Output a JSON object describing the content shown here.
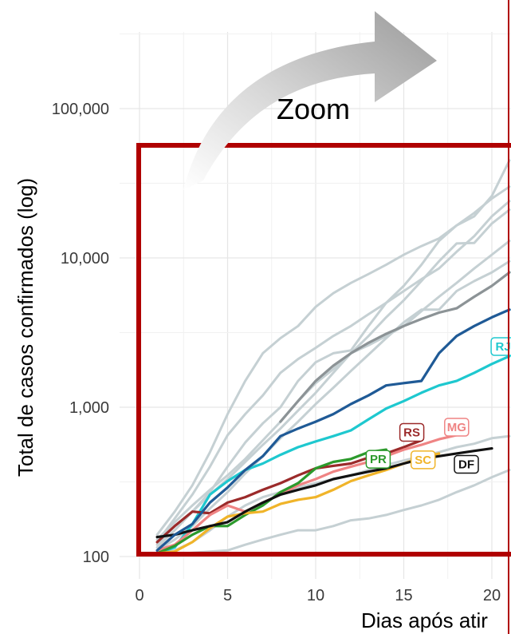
{
  "annotation": {
    "text": "Zoom"
  },
  "chart_data": {
    "type": "line",
    "title": "",
    "xlabel": "Dias após atir",
    "ylabel": "Total de casos confirmados (log)",
    "y_scale": "log10",
    "xlim": [
      0,
      21.5
    ],
    "ylim": [
      100,
      180000
    ],
    "x_ticks": [
      {
        "value": 0,
        "label": "0"
      },
      {
        "value": 5,
        "label": "5"
      },
      {
        "value": 10,
        "label": "10"
      },
      {
        "value": 15,
        "label": "15"
      },
      {
        "value": 20,
        "label": "20"
      }
    ],
    "y_ticks": [
      {
        "value": 100,
        "label": "100"
      },
      {
        "value": 1000,
        "label": "1,000"
      },
      {
        "value": 10000,
        "label": "10,000"
      },
      {
        "value": 100000,
        "label": "100,000"
      }
    ],
    "grid": true,
    "colors": {
      "background_series": "#c5d0d3",
      "highlight_box": "#b00000",
      "zoom_arrow": "#c8c8c8"
    },
    "series": [
      {
        "label": "RJ",
        "color": "#1ec8cf",
        "show_label": true,
        "x": [
          1,
          2,
          3,
          4,
          5,
          6,
          7,
          8,
          9,
          10,
          11,
          12,
          13,
          14,
          15,
          16,
          17,
          18,
          19,
          20,
          21
        ],
        "y": [
          105,
          115,
          165,
          260,
          320,
          380,
          420,
          480,
          540,
          590,
          640,
          700,
          830,
          980,
          1100,
          1250,
          1400,
          1500,
          1700,
          1950,
          2200
        ]
      },
      {
        "label": "RS",
        "color": "#9b2a2a",
        "show_label": true,
        "x": [
          1,
          2,
          3,
          4,
          5,
          6,
          7,
          8,
          9,
          10,
          11,
          12,
          13,
          14,
          15,
          16
        ],
        "y": [
          125,
          160,
          200,
          195,
          230,
          250,
          280,
          310,
          350,
          390,
          405,
          420,
          460,
          490,
          540,
          600
        ]
      },
      {
        "label": "MG",
        "color": "#ef8484",
        "show_label": true,
        "x": [
          1,
          2,
          3,
          4,
          5,
          6,
          7,
          8,
          9,
          10,
          11,
          12,
          13,
          14,
          15,
          16,
          17,
          18
        ],
        "y": [
          110,
          120,
          150,
          190,
          220,
          200,
          230,
          260,
          300,
          330,
          370,
          400,
          430,
          470,
          520,
          560,
          610,
          650
        ]
      },
      {
        "label": "PR",
        "color": "#2c9a2c",
        "show_label": true,
        "x": [
          1,
          2,
          3,
          4,
          5,
          6,
          7,
          8,
          9,
          10,
          11,
          12,
          13,
          14
        ],
        "y": [
          105,
          118,
          140,
          160,
          160,
          190,
          220,
          270,
          310,
          390,
          430,
          450,
          500,
          520
        ]
      },
      {
        "label": "SC",
        "color": "#f0b429",
        "show_label": true,
        "x": [
          1,
          2,
          3,
          4,
          5,
          6,
          7,
          8,
          9,
          10,
          11,
          12,
          13,
          14,
          15,
          16,
          17
        ],
        "y": [
          105,
          108,
          125,
          155,
          185,
          195,
          200,
          225,
          240,
          250,
          280,
          320,
          350,
          380,
          420,
          460,
          490
        ]
      },
      {
        "label": "DF",
        "color": "#111111",
        "show_label": true,
        "x": [
          1,
          2,
          3,
          4,
          5,
          6,
          7,
          8,
          9,
          10,
          11,
          12,
          13,
          14,
          15,
          16,
          17,
          18,
          19,
          20
        ],
        "y": [
          135,
          140,
          150,
          160,
          170,
          200,
          230,
          260,
          280,
          300,
          330,
          350,
          370,
          390,
          420,
          450,
          470,
          490,
          510,
          530
        ]
      },
      {
        "label": "",
        "color": "#1f5a96",
        "show_label": false,
        "x": [
          1,
          2,
          3,
          4,
          5,
          6,
          7,
          8,
          9,
          10,
          11,
          12,
          13,
          14,
          15,
          16,
          17,
          18,
          19,
          20,
          21
        ],
        "y": [
          110,
          140,
          165,
          230,
          290,
          380,
          470,
          640,
          720,
          800,
          900,
          1050,
          1200,
          1400,
          1450,
          1500,
          2300,
          3000,
          3500,
          4000,
          4500
        ]
      },
      {
        "label": "",
        "color": "#8c9396",
        "show_label": false,
        "x": [
          8,
          9,
          10,
          11,
          12,
          13,
          14,
          15,
          16,
          17,
          18,
          19,
          20,
          21
        ],
        "y": [
          800,
          1100,
          1500,
          1900,
          2300,
          2700,
          3100,
          3500,
          3900,
          4300,
          4600,
          5500,
          6500,
          8000
        ]
      },
      {
        "label": "",
        "color": "#c5d0d3",
        "show_label": false,
        "x": [
          1,
          2,
          3,
          4,
          5,
          6,
          7,
          8,
          9,
          10,
          11,
          12,
          13,
          14,
          15,
          16,
          17,
          18,
          19,
          20,
          21
        ],
        "y": [
          140,
          200,
          300,
          500,
          900,
          1500,
          2300,
          2900,
          3500,
          4700,
          5800,
          6800,
          7800,
          9000,
          10500,
          12000,
          13500,
          16500,
          20000,
          25000,
          30000
        ]
      },
      {
        "label": "",
        "color": "#c5d0d3",
        "show_label": false,
        "x": [
          1,
          2,
          3,
          4,
          5,
          6,
          7,
          8,
          9,
          10,
          11,
          12,
          13,
          14,
          15,
          16,
          17,
          18,
          19,
          20,
          21
        ],
        "y": [
          125,
          180,
          260,
          400,
          650,
          900,
          1200,
          1700,
          2100,
          2500,
          3000,
          3500,
          4200,
          5000,
          6000,
          7200,
          8500,
          11000,
          14000,
          19000,
          24000
        ]
      },
      {
        "label": "",
        "color": "#c5d0d3",
        "show_label": false,
        "x": [
          1,
          2,
          3,
          4,
          5,
          6,
          7,
          8,
          9,
          10,
          11,
          12,
          13,
          14,
          15,
          16,
          17,
          18,
          19,
          20,
          21
        ],
        "y": [
          115,
          150,
          200,
          270,
          400,
          580,
          780,
          1000,
          1500,
          2000,
          2300,
          2400,
          3500,
          5000,
          6500,
          9000,
          13000,
          16500,
          19000,
          26000,
          45000
        ]
      },
      {
        "label": "",
        "color": "#c5d0d3",
        "show_label": false,
        "x": [
          1,
          2,
          3,
          4,
          5,
          6,
          7,
          8,
          9,
          10,
          11,
          12,
          13,
          14,
          15,
          16,
          17,
          18,
          19,
          20,
          21
        ],
        "y": [
          130,
          170,
          220,
          280,
          350,
          450,
          600,
          800,
          1100,
          1450,
          1800,
          2300,
          3000,
          4000,
          5200,
          7000,
          9500,
          12500,
          12600,
          17000,
          21000
        ]
      },
      {
        "label": "",
        "color": "#c5d0d3",
        "show_label": false,
        "x": [
          1,
          2,
          3,
          4,
          5,
          6,
          7,
          8,
          9,
          10,
          11,
          12,
          13,
          14,
          15,
          16,
          17,
          18,
          19,
          20,
          21
        ],
        "y": [
          120,
          160,
          200,
          260,
          330,
          430,
          560,
          720,
          950,
          1250,
          1700,
          2300,
          2600,
          3000,
          3500,
          4400,
          5500,
          6800,
          8500,
          10500,
          13000
        ]
      },
      {
        "label": "",
        "color": "#c5d0d3",
        "show_label": false,
        "x": [
          1,
          2,
          3,
          4,
          5,
          6,
          7,
          8,
          9,
          10,
          11,
          12,
          13,
          14,
          15,
          16,
          17,
          18,
          19,
          20,
          21
        ],
        "y": [
          110,
          130,
          160,
          210,
          270,
          360,
          470,
          620,
          800,
          1050,
          1350,
          1750,
          2250,
          2900,
          3700,
          4500,
          4500,
          6000,
          7000,
          8000,
          9500
        ]
      },
      {
        "label": "",
        "color": "#c5d0d3",
        "show_label": false,
        "x": [
          1,
          2,
          3,
          4,
          5,
          6,
          7,
          8,
          9,
          10,
          11,
          12,
          13,
          14,
          15,
          16,
          17,
          18,
          19,
          20,
          21
        ],
        "y": [
          102,
          104,
          106,
          108,
          110,
          120,
          130,
          140,
          150,
          150,
          160,
          175,
          180,
          190,
          205,
          220,
          240,
          270,
          300,
          340,
          380
        ]
      },
      {
        "label": "",
        "color": "#c5d0d3",
        "show_label": false,
        "x": [
          1,
          2,
          3,
          4,
          5,
          6,
          7,
          8,
          9,
          10,
          11,
          12,
          13,
          14,
          15,
          16,
          17,
          18,
          19,
          20,
          21
        ],
        "y": [
          105,
          110,
          125,
          150,
          185,
          220,
          250,
          270,
          290,
          310,
          330,
          350,
          380,
          410,
          440,
          470,
          500,
          540,
          570,
          620,
          640
        ]
      }
    ]
  }
}
